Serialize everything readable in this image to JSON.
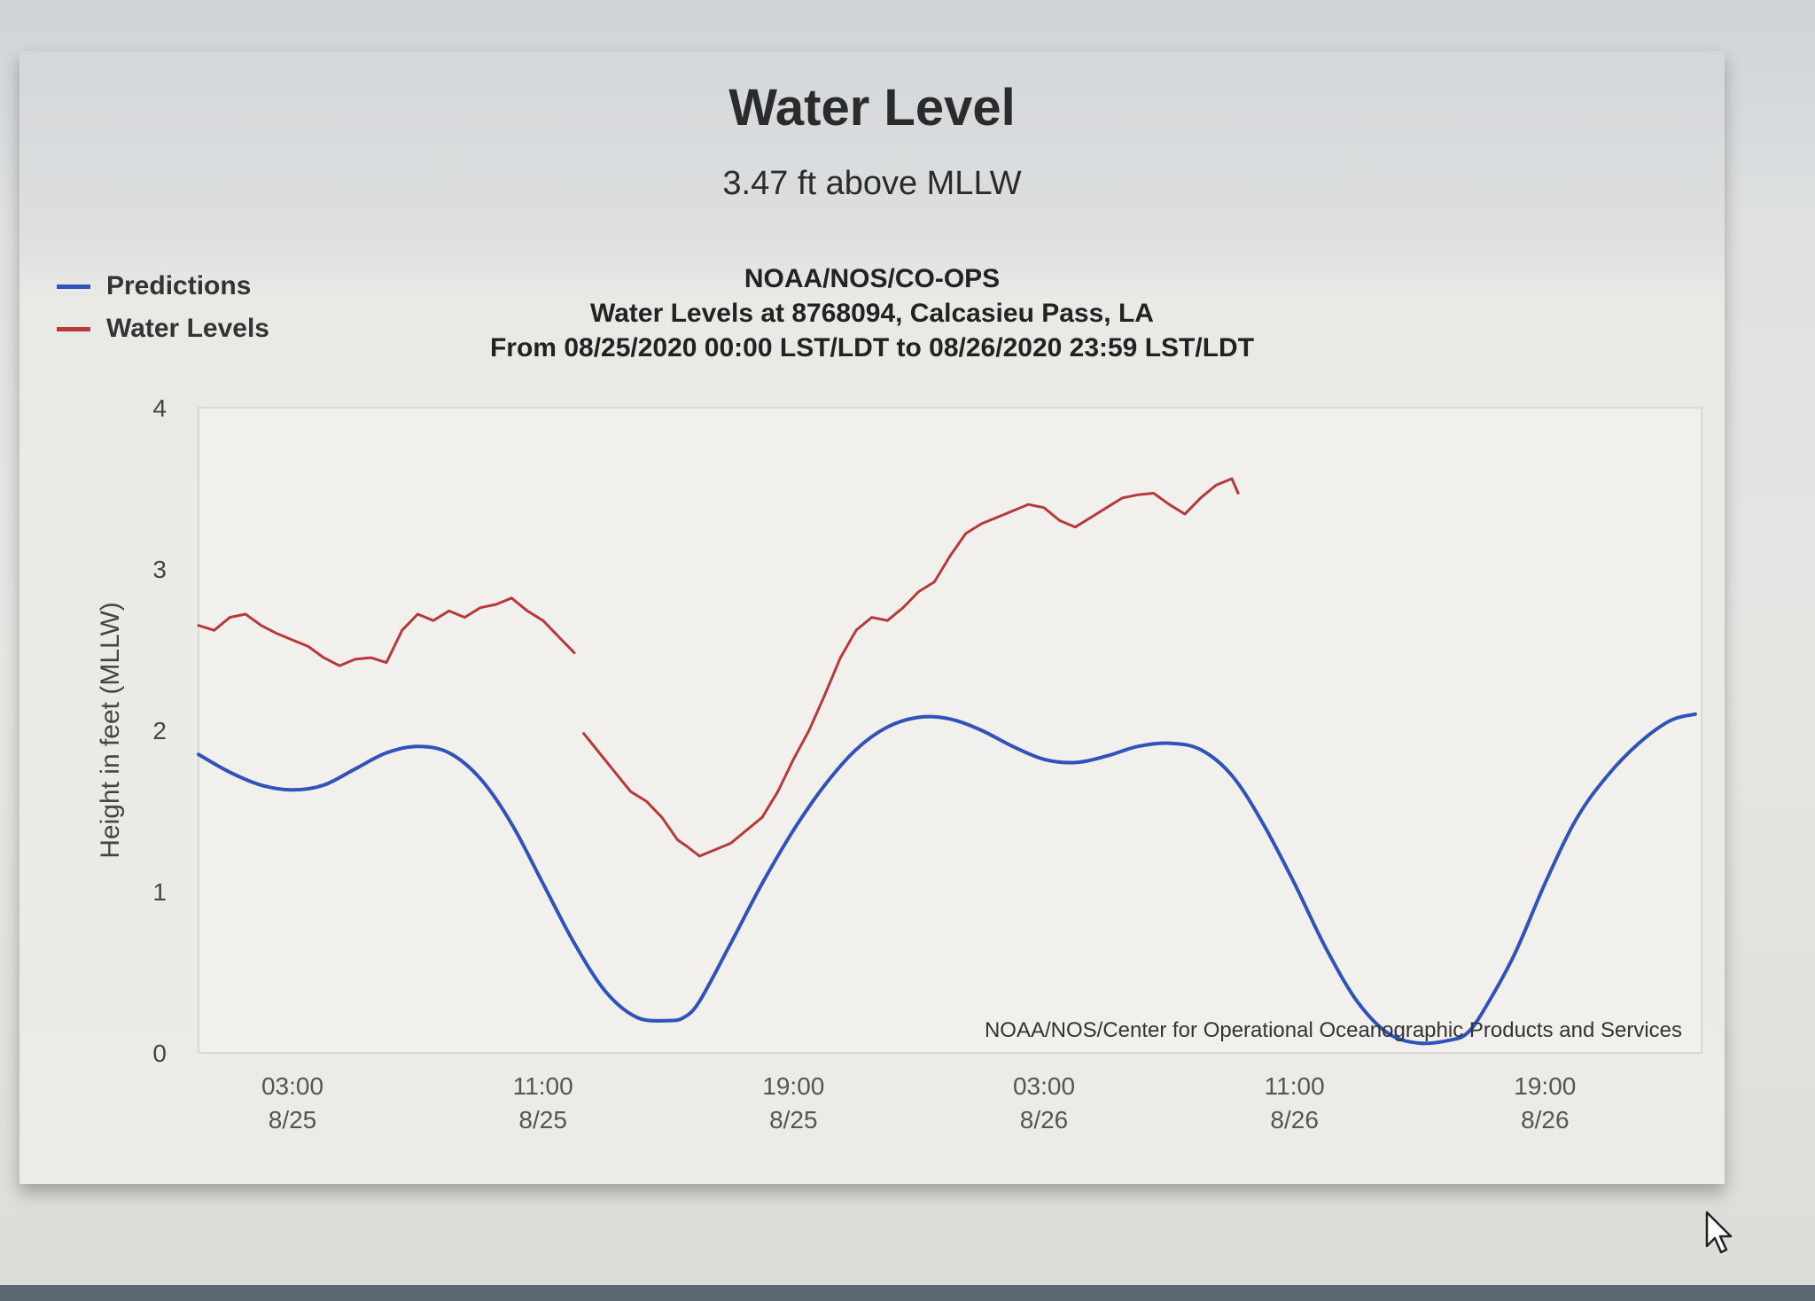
{
  "header": {
    "title": "Water Level",
    "subtitle": "3.47 ft above MLLW"
  },
  "chart_header": {
    "agency": "NOAA/NOS/CO-OPS",
    "station": "Water Levels at 8768094, Calcasieu Pass, LA",
    "range": "From 08/25/2020 00:00 LST/LDT to 08/26/2020 23:59 LST/LDT"
  },
  "legend": [
    {
      "label": "Predictions",
      "color": "#2f53b8"
    },
    {
      "label": "Water Levels",
      "color": "#b8393a"
    }
  ],
  "credit": "NOAA/NOS/Center for Operational Oceanographic Products and Services",
  "chart_data": {
    "type": "line",
    "title": "Water Level",
    "subtitle": "3.47 ft above MLLW",
    "ylabel": "Height in feet (MLLW)",
    "xlabel": "",
    "ylim": [
      0,
      4
    ],
    "xlim_hours": [
      0,
      48
    ],
    "yticks": [
      0,
      1,
      2,
      3,
      4
    ],
    "xticks": [
      {
        "hour": 3,
        "time": "03:00",
        "date": "8/25"
      },
      {
        "hour": 11,
        "time": "11:00",
        "date": "8/25"
      },
      {
        "hour": 19,
        "time": "19:00",
        "date": "8/25"
      },
      {
        "hour": 27,
        "time": "03:00",
        "date": "8/26"
      },
      {
        "hour": 35,
        "time": "11:00",
        "date": "8/26"
      },
      {
        "hour": 43,
        "time": "19:00",
        "date": "8/26"
      }
    ],
    "series": [
      {
        "name": "Predictions",
        "color": "#2f53b8",
        "hours": [
          0,
          1,
          2,
          3,
          4,
          5,
          6,
          7,
          8,
          9,
          10,
          11,
          12,
          13,
          14,
          15,
          15.5,
          16,
          17,
          18,
          19,
          20,
          21,
          22,
          23,
          24,
          25,
          26,
          27,
          28,
          29,
          30,
          31,
          32,
          33,
          34,
          35,
          36,
          37,
          38,
          39,
          40,
          40.5,
          41,
          42,
          43,
          44,
          45,
          46,
          47,
          47.8
        ],
        "values": [
          1.85,
          1.74,
          1.66,
          1.63,
          1.66,
          1.76,
          1.86,
          1.9,
          1.86,
          1.7,
          1.42,
          1.05,
          0.68,
          0.38,
          0.22,
          0.2,
          0.22,
          0.32,
          0.68,
          1.05,
          1.38,
          1.66,
          1.88,
          2.02,
          2.08,
          2.07,
          2.0,
          1.9,
          1.82,
          1.8,
          1.84,
          1.9,
          1.92,
          1.88,
          1.72,
          1.42,
          1.05,
          0.65,
          0.32,
          0.12,
          0.06,
          0.08,
          0.12,
          0.25,
          0.6,
          1.05,
          1.45,
          1.72,
          1.92,
          2.06,
          2.1
        ]
      },
      {
        "name": "Water Levels",
        "color": "#b8393a",
        "hours": [
          0,
          0.5,
          1,
          1.5,
          2,
          2.5,
          3,
          3.5,
          4,
          4.5,
          5,
          5.5,
          6,
          6.5,
          7,
          7.5,
          8,
          8.5,
          9,
          9.5,
          10,
          10.5,
          11,
          11.5,
          12,
          null,
          12.3,
          12.8,
          13.3,
          13.8,
          14.3,
          14.8,
          15.3,
          15.6,
          16,
          16.5,
          17,
          17.5,
          18,
          18.5,
          19,
          19.5,
          20,
          20.5,
          21,
          21.5,
          22,
          22.5,
          23,
          23.5,
          24,
          24.5,
          25,
          25.5,
          26,
          26.5,
          27,
          27.5,
          28,
          28.5,
          29,
          29.5,
          30,
          30.5,
          31,
          31.5,
          32,
          32.5,
          33,
          33.2
        ],
        "values": [
          2.65,
          2.62,
          2.7,
          2.72,
          2.65,
          2.6,
          2.56,
          2.52,
          2.45,
          2.4,
          2.44,
          2.45,
          2.42,
          2.62,
          2.72,
          2.68,
          2.74,
          2.7,
          2.76,
          2.78,
          2.82,
          2.74,
          2.68,
          2.58,
          2.48,
          null,
          1.98,
          1.86,
          1.74,
          1.62,
          1.56,
          1.46,
          1.32,
          1.28,
          1.22,
          1.26,
          1.3,
          1.38,
          1.46,
          1.62,
          1.82,
          2.0,
          2.22,
          2.45,
          2.62,
          2.7,
          2.68,
          2.76,
          2.86,
          2.92,
          3.08,
          3.22,
          3.28,
          3.32,
          3.36,
          3.4,
          3.38,
          3.3,
          3.26,
          3.32,
          3.38,
          3.44,
          3.46,
          3.47,
          3.4,
          3.34,
          3.44,
          3.52,
          3.56,
          3.47
        ]
      }
    ]
  }
}
